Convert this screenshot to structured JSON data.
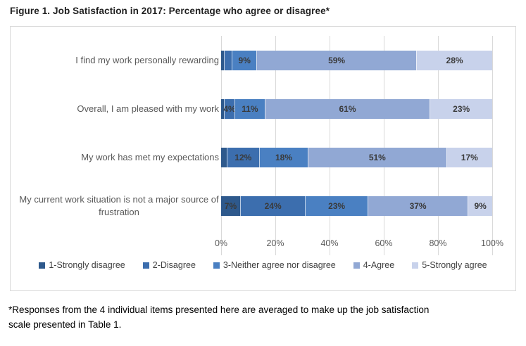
{
  "title": "Figure 1.  Job Satisfaction in 2017: Percentage who agree or disagree*",
  "footnote": "*Responses from the 4 individual items presented here are averaged to make up the job satisfaction scale presented in Table 1.",
  "chart_data": {
    "type": "bar",
    "orientation": "horizontal",
    "stacked": true,
    "grid": true,
    "legend_position": "bottom",
    "xlim": [
      0,
      100
    ],
    "x_ticks": [
      "0%",
      "20%",
      "40%",
      "60%",
      "80%",
      "100%"
    ],
    "categories": [
      "I find my work personally rewarding",
      "Overall, I am pleased with my work",
      "My work has met my expectations",
      "My current work situation is not a major source of frustration"
    ],
    "series": [
      {
        "name": "1-Strongly disagree",
        "color": "#2e598c",
        "values": [
          1,
          1,
          2,
          7
        ],
        "labels": [
          "",
          "",
          "",
          "7%"
        ]
      },
      {
        "name": "2-Disagree",
        "color": "#3c6eae",
        "values": [
          3,
          4,
          12,
          24
        ],
        "labels": [
          "",
          "4%",
          "12%",
          "24%"
        ]
      },
      {
        "name": "3-Neither agree nor disagree",
        "color": "#4a80c2",
        "values": [
          9,
          11,
          18,
          23
        ],
        "labels": [
          "9%",
          "11%",
          "18%",
          "23%"
        ]
      },
      {
        "name": "4-Agree",
        "color": "#91a8d4",
        "values": [
          59,
          61,
          51,
          37
        ],
        "labels": [
          "59%",
          "61%",
          "51%",
          "37%"
        ]
      },
      {
        "name": "5-Strongly agree",
        "color": "#c8d2eb",
        "values": [
          28,
          23,
          17,
          9
        ],
        "labels": [
          "28%",
          "23%",
          "17%",
          "9%"
        ]
      }
    ]
  },
  "style_colors": {
    "gridline": "#d9d9d9",
    "frame_border": "#d9d9d9",
    "category_text": "#595959",
    "tick_text": "#595959",
    "value_label_text": "#3a3a3a"
  }
}
